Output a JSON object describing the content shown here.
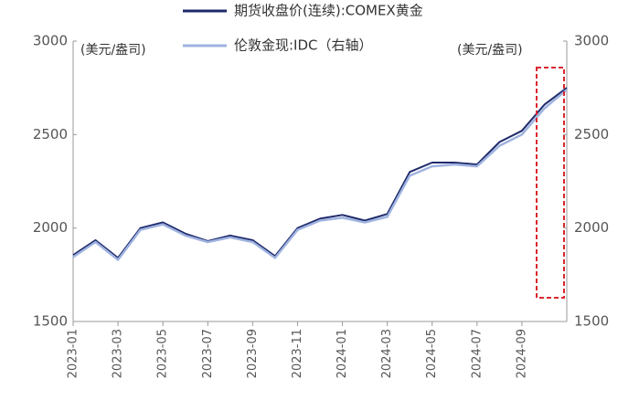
{
  "chart_data": {
    "type": "line",
    "y_unit_left": "(美元/盎司)",
    "y_unit_right": "(美元/盎司)",
    "x": [
      "2023-01",
      "2023-02",
      "2023-03",
      "2023-04",
      "2023-05",
      "2023-06",
      "2023-07",
      "2023-08",
      "2023-09",
      "2023-10",
      "2023-11",
      "2023-12",
      "2024-01",
      "2024-02",
      "2024-03",
      "2024-04",
      "2024-05",
      "2024-06",
      "2024-07",
      "2024-08",
      "2024-09",
      "2024-10",
      "2024-11"
    ],
    "xticks": [
      "2023-01",
      "2023-03",
      "2023-05",
      "2023-07",
      "2023-09",
      "2023-11",
      "2024-01",
      "2024-03",
      "2024-05",
      "2024-07",
      "2024-09"
    ],
    "xlim": [
      "2023-01",
      "2024-11"
    ],
    "series": [
      {
        "name": "期货收盘价(连续):COMEX黄金",
        "color": "#1f2a6b",
        "values": [
          1855,
          1935,
          1840,
          2000,
          2030,
          1970,
          1930,
          1960,
          1935,
          1850,
          2000,
          2050,
          2070,
          2040,
          2075,
          2300,
          2350,
          2350,
          2340,
          2460,
          2520,
          2660,
          2750
        ]
      },
      {
        "name": "伦敦金现:IDC（右轴）",
        "color": "#9fb3e0",
        "axis": "y2",
        "values": [
          1845,
          1925,
          1830,
          1990,
          2020,
          1960,
          1925,
          1950,
          1925,
          1840,
          1990,
          2040,
          2055,
          2030,
          2060,
          2280,
          2330,
          2340,
          2330,
          2440,
          2500,
          2640,
          2740
        ]
      }
    ],
    "ylim": [
      1500,
      3000
    ],
    "yticks": [
      1500,
      2000,
      2500,
      3000
    ],
    "y2lim": [
      1500,
      3000
    ],
    "y2ticks": [
      1500,
      2000,
      2500,
      3000
    ],
    "highlight_color": "#d9262e"
  }
}
